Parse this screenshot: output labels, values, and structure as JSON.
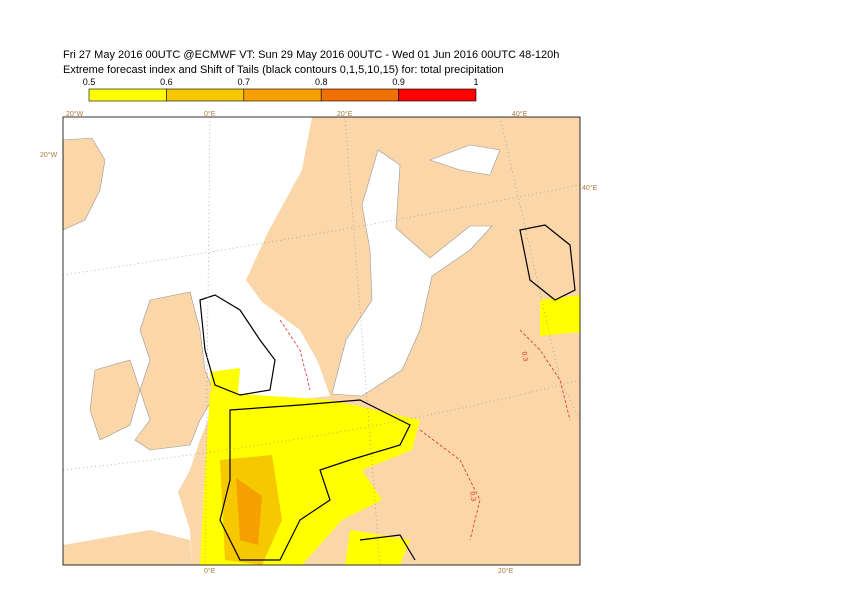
{
  "header": {
    "title_line1": "Fri 27 May 2016 00UTC @ECMWF VT: Sun 29 May 2016 00UTC - Wed 01 Jun 2016 00UTC  48-120h",
    "title_line2": "Extreme forecast index and Shift of Tails (black contours 0,1,5,10,15) for: total precipitation"
  },
  "legend": {
    "ticks": [
      0.5,
      0.6,
      0.7,
      0.8,
      0.9,
      1
    ],
    "colors": [
      "#ffff00",
      "#f5c800",
      "#f5a000",
      "#f07000",
      "#ff0000"
    ]
  },
  "map": {
    "graticule_labels": [
      "20°W",
      "0°E",
      "20°E",
      "40°E",
      "20°W",
      "40°E",
      "0°E",
      "20°E"
    ],
    "contour_labels": [
      "0.3",
      "0.3"
    ]
  }
}
